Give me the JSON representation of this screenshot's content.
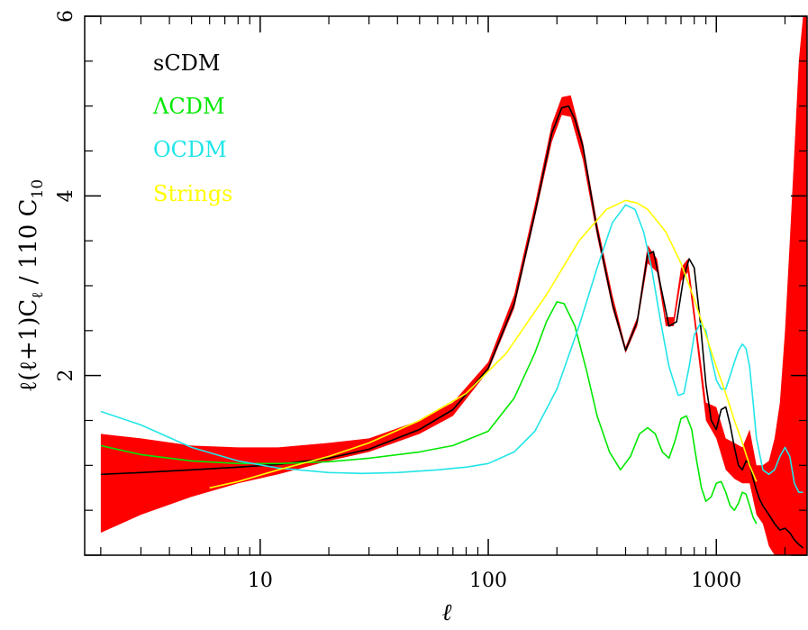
{
  "chart_data": {
    "type": "line",
    "title": "",
    "xlabel": "ℓ",
    "ylabel": "ℓ(ℓ+1)C_ℓ / 110 C_10",
    "ylabel_parts": {
      "main": "ℓ(ℓ+1)C",
      "sub1": "ℓ",
      "mid": " / 110 C",
      "sub2": "10"
    },
    "x_scale": "log",
    "xlim": [
      1.7,
      2500
    ],
    "ylim": [
      0,
      6
    ],
    "x_ticks": [
      {
        "value": 10,
        "label": "10"
      },
      {
        "value": 100,
        "label": "100"
      },
      {
        "value": 1000,
        "label": "1000"
      }
    ],
    "y_ticks": [
      {
        "value": 2,
        "label": "2"
      },
      {
        "value": 4,
        "label": "4"
      },
      {
        "value": 6,
        "label": "6"
      }
    ],
    "grid": false,
    "legend_position": "top-left",
    "band": {
      "name": "sCDM",
      "color": "#ff0000",
      "x": [
        2,
        3,
        5,
        8,
        12,
        20,
        30,
        50,
        70,
        100,
        130,
        160,
        190,
        210,
        230,
        260,
        300,
        350,
        400,
        450,
        500,
        550,
        600,
        650,
        700,
        750,
        800,
        900,
        1000,
        1100,
        1200,
        1300,
        1400,
        1500,
        1600,
        1700,
        1800,
        1900,
        2000,
        2100,
        2200,
        2300,
        2400,
        2500
      ],
      "lower": [
        0.25,
        0.45,
        0.65,
        0.8,
        0.9,
        1.05,
        1.15,
        1.35,
        1.55,
        2.05,
        2.75,
        3.75,
        4.6,
        4.9,
        4.88,
        4.4,
        3.55,
        2.75,
        2.25,
        2.55,
        3.25,
        3.15,
        2.55,
        2.55,
        3.05,
        3.15,
        2.6,
        1.5,
        1.3,
        0.95,
        0.85,
        0.8,
        0.8,
        0.45,
        0.35,
        0.1,
        0,
        0,
        0,
        0,
        0,
        0,
        0,
        0
      ],
      "upper": [
        1.35,
        1.3,
        1.22,
        1.2,
        1.2,
        1.25,
        1.3,
        1.5,
        1.7,
        2.15,
        2.9,
        3.9,
        4.8,
        5.1,
        5.12,
        4.6,
        3.7,
        2.9,
        2.32,
        2.65,
        3.45,
        3.3,
        2.65,
        2.65,
        3.2,
        3.3,
        2.75,
        1.7,
        1.65,
        1.3,
        1.25,
        1.2,
        1.4,
        1.0,
        1.0,
        1.05,
        1.3,
        1.7,
        2.5,
        3.5,
        4.5,
        5.5,
        6,
        6
      ]
    },
    "series": [
      {
        "name": "sCDM",
        "color": "#000000",
        "x": [
          2,
          3,
          5,
          8,
          12,
          20,
          30,
          50,
          70,
          100,
          130,
          160,
          190,
          210,
          225,
          240,
          260,
          300,
          350,
          400,
          450,
          500,
          530,
          570,
          620,
          670,
          720,
          760,
          800,
          850,
          900,
          950,
          1000,
          1050,
          1100,
          1150,
          1200,
          1250,
          1300,
          1350,
          1400,
          1450,
          1500,
          1550,
          1600,
          1700,
          1800,
          1900,
          2000,
          2100,
          2200,
          2300,
          2400
        ],
        "y": [
          0.9,
          0.92,
          0.95,
          0.98,
          1.01,
          1.08,
          1.18,
          1.4,
          1.62,
          2.08,
          2.8,
          3.8,
          4.7,
          4.98,
          5.0,
          4.85,
          4.55,
          3.62,
          2.8,
          2.28,
          2.6,
          3.35,
          3.38,
          3.0,
          2.55,
          2.6,
          3.1,
          3.3,
          3.2,
          2.6,
          1.9,
          1.5,
          1.4,
          1.62,
          1.65,
          1.45,
          1.2,
          1.0,
          0.95,
          1.05,
          1.02,
          0.85,
          0.72,
          0.62,
          0.55,
          0.45,
          0.35,
          0.28,
          0.3,
          0.25,
          0.17,
          0.12,
          0.08
        ]
      },
      {
        "name": "ΛCDM",
        "color": "#00e800",
        "x": [
          2,
          3,
          5,
          8,
          12,
          20,
          30,
          50,
          70,
          100,
          130,
          160,
          180,
          200,
          215,
          240,
          270,
          300,
          340,
          380,
          420,
          460,
          500,
          540,
          580,
          620,
          660,
          700,
          740,
          780,
          820,
          860,
          900,
          950,
          1000,
          1050,
          1100,
          1150,
          1200,
          1250,
          1300,
          1350,
          1400,
          1450,
          1500
        ],
        "y": [
          1.22,
          1.12,
          1.05,
          1.02,
          1.02,
          1.04,
          1.08,
          1.15,
          1.22,
          1.38,
          1.75,
          2.25,
          2.6,
          2.82,
          2.8,
          2.55,
          2.05,
          1.55,
          1.15,
          0.95,
          1.1,
          1.35,
          1.42,
          1.35,
          1.15,
          1.08,
          1.28,
          1.52,
          1.55,
          1.4,
          1.05,
          0.75,
          0.6,
          0.65,
          0.8,
          0.82,
          0.7,
          0.55,
          0.5,
          0.58,
          0.7,
          0.68,
          0.55,
          0.42,
          0.35
        ]
      },
      {
        "name": "OCDM",
        "color": "#22e5e8",
        "x": [
          2,
          3,
          5,
          8,
          12,
          20,
          28,
          40,
          60,
          80,
          100,
          130,
          160,
          200,
          250,
          300,
          350,
          400,
          440,
          480,
          520,
          570,
          620,
          680,
          720,
          760,
          800,
          850,
          900,
          950,
          1000,
          1050,
          1100,
          1150,
          1200,
          1250,
          1300,
          1350,
          1400,
          1450,
          1500,
          1600,
          1700,
          1800,
          1900,
          2000,
          2100,
          2200,
          2300,
          2400
        ],
        "y": [
          1.6,
          1.45,
          1.2,
          1.05,
          0.97,
          0.92,
          0.91,
          0.92,
          0.95,
          0.98,
          1.02,
          1.15,
          1.38,
          1.85,
          2.55,
          3.2,
          3.7,
          3.9,
          3.85,
          3.6,
          3.2,
          2.6,
          2.1,
          1.78,
          1.8,
          2.1,
          2.45,
          2.58,
          2.5,
          2.2,
          1.95,
          1.85,
          1.85,
          2.0,
          2.15,
          2.28,
          2.35,
          2.3,
          2.1,
          1.7,
          1.3,
          0.95,
          0.9,
          0.95,
          1.1,
          1.2,
          1.1,
          0.8,
          0.7,
          0.7
        ]
      },
      {
        "name": "Strings",
        "color": "#ffff00",
        "x": [
          6,
          8,
          12,
          20,
          30,
          50,
          80,
          120,
          180,
          250,
          330,
          400,
          450,
          500,
          600,
          700,
          800,
          900,
          1000,
          1100,
          1200,
          1300,
          1400,
          1500
        ],
        "y": [
          0.75,
          0.82,
          0.95,
          1.1,
          1.25,
          1.5,
          1.8,
          2.25,
          2.9,
          3.5,
          3.85,
          3.95,
          3.92,
          3.85,
          3.6,
          3.25,
          2.85,
          2.45,
          2.1,
          1.8,
          1.5,
          1.25,
          1.0,
          0.82
        ]
      }
    ]
  }
}
